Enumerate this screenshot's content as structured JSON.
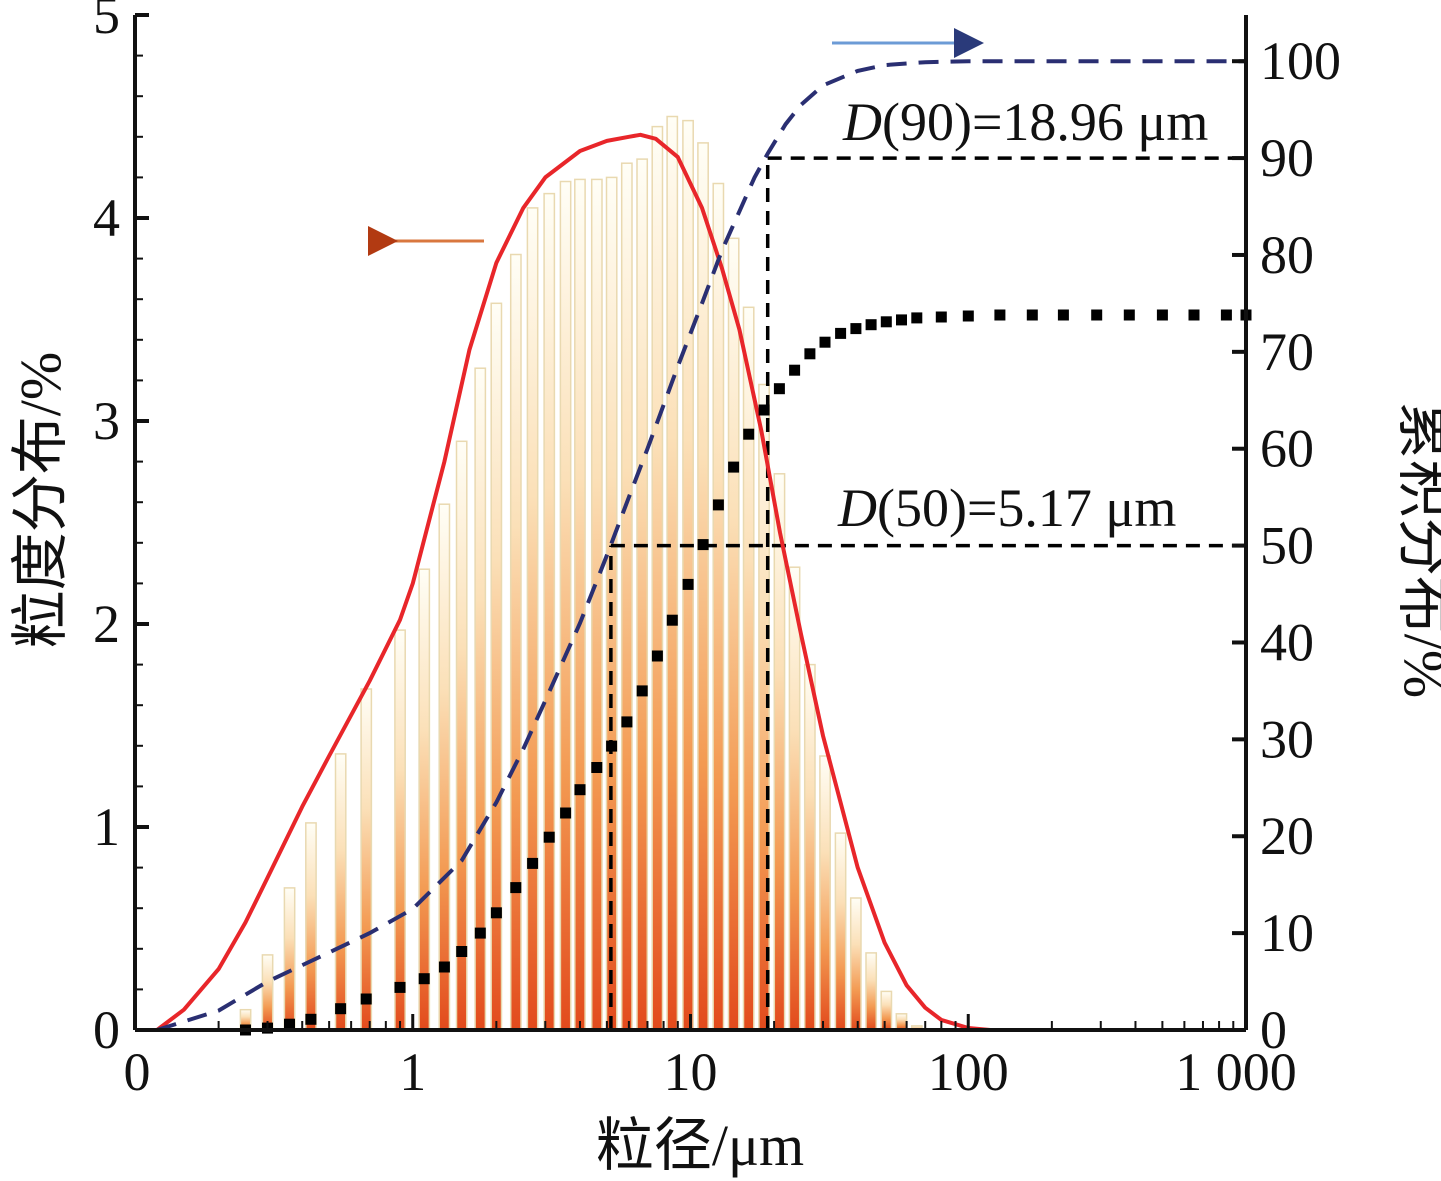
{
  "chart_data": {
    "type": "bar",
    "xscale": "log",
    "xlim": [
      0.1,
      1000
    ],
    "xlabel": "粒径/μm",
    "ylabel_left": "粒度分布/%",
    "ylabel_right": "累积分布/%",
    "ylim_left": [
      0,
      5
    ],
    "ylim_right": [
      0,
      105
    ],
    "xticks": [
      {
        "value": 0.1,
        "label": "0"
      },
      {
        "value": 1,
        "label": "1"
      },
      {
        "value": 10,
        "label": "10"
      },
      {
        "value": 100,
        "label": "100"
      },
      {
        "value": 1000,
        "label": "1 000"
      }
    ],
    "yticks_left": [
      "0",
      "1",
      "2",
      "3",
      "4",
      "5"
    ],
    "yticks_right": [
      "0",
      "10",
      "20",
      "30",
      "40",
      "50",
      "60",
      "70",
      "80",
      "90",
      "100"
    ],
    "bars": {
      "x": [
        0.25,
        0.3,
        0.36,
        0.43,
        0.55,
        0.68,
        0.9,
        1.1,
        1.3,
        1.5,
        1.75,
        2.0,
        2.35,
        2.7,
        3.1,
        3.55,
        4.0,
        4.6,
        5.2,
        5.9,
        6.7,
        7.6,
        8.6,
        9.8,
        11.1,
        12.6,
        14.3,
        16.2,
        18.4,
        20.9,
        23.7,
        26.9,
        30.5,
        34.7,
        39.4,
        44.7,
        50.7,
        57.5,
        65.3
      ],
      "values": [
        0.1,
        0.37,
        0.7,
        1.02,
        1.36,
        1.68,
        1.97,
        2.27,
        2.59,
        2.9,
        3.26,
        3.58,
        3.82,
        4.05,
        4.12,
        4.18,
        4.19,
        4.19,
        4.2,
        4.27,
        4.29,
        4.45,
        4.5,
        4.48,
        4.37,
        4.17,
        3.9,
        3.56,
        3.18,
        2.74,
        2.28,
        1.8,
        1.35,
        0.97,
        0.65,
        0.38,
        0.19,
        0.08,
        0.02
      ]
    },
    "density_curve": {
      "x": [
        0.12,
        0.15,
        0.2,
        0.25,
        0.3,
        0.4,
        0.5,
        0.7,
        0.9,
        1.0,
        1.3,
        1.6,
        2.0,
        2.5,
        3.0,
        4.0,
        5.0,
        6.0,
        6.6,
        7.5,
        9.0,
        11.0,
        13.0,
        15.0,
        18.0,
        21.0,
        25.0,
        30.0,
        40.0,
        50.0,
        60.0,
        70.0,
        80.0,
        100.0,
        120.0
      ],
      "values": [
        0.0,
        0.1,
        0.3,
        0.53,
        0.75,
        1.1,
        1.35,
        1.72,
        2.02,
        2.2,
        2.8,
        3.35,
        3.78,
        4.05,
        4.2,
        4.33,
        4.38,
        4.4,
        4.41,
        4.39,
        4.3,
        4.05,
        3.75,
        3.45,
        2.95,
        2.45,
        1.95,
        1.45,
        0.8,
        0.43,
        0.22,
        0.11,
        0.05,
        0.01,
        0.0
      ]
    },
    "cumulative_points": {
      "x": [
        0.25,
        0.3,
        0.36,
        0.43,
        0.55,
        0.68,
        0.9,
        1.1,
        1.3,
        1.5,
        1.75,
        2.0,
        2.35,
        2.7,
        3.1,
        3.55,
        4.0,
        4.6,
        5.2,
        5.9,
        6.7,
        7.6,
        8.6,
        9.8,
        11.1,
        12.6,
        14.3,
        16.2,
        18.4,
        20.9,
        23.7,
        26.9,
        30.5,
        34.7,
        39.4,
        44.7,
        50.7,
        57.5,
        65.3,
        80,
        100,
        130,
        170,
        220,
        290,
        380,
        500,
        650,
        850,
        1000
      ],
      "values": [
        0.0,
        0.2,
        0.6,
        1.1,
        2.2,
        3.2,
        4.4,
        5.3,
        6.5,
        8.1,
        10.0,
        12.1,
        14.7,
        17.2,
        19.9,
        22.4,
        24.8,
        27.1,
        29.3,
        31.8,
        35.0,
        38.6,
        42.3,
        46.0,
        50.1,
        54.2,
        58.1,
        61.5,
        64.0,
        66.2,
        68.1,
        69.8,
        71.0,
        71.9,
        72.4,
        72.8,
        73.1,
        73.3,
        73.5,
        73.6,
        73.7,
        73.8,
        73.8,
        73.8,
        73.8,
        73.8,
        73.8,
        73.8,
        73.8,
        73.8
      ]
    },
    "cumulative_curve": {
      "x": [
        0.12,
        0.2,
        0.3,
        0.5,
        0.7,
        1.0,
        1.5,
        2.0,
        2.5,
        3.0,
        4.0,
        5.0,
        6.0,
        7.0,
        9.0,
        11.0,
        13.0,
        15.0,
        17.0,
        19.0,
        22.0,
        25.0,
        30.0,
        40.0,
        50.0,
        70.0,
        100.0,
        200.0,
        500.0,
        1000.0
      ],
      "values": [
        0.0,
        2.0,
        5.0,
        8.0,
        10.0,
        12.5,
        17.5,
        23.5,
        29.0,
        34.0,
        42.0,
        49.0,
        55.0,
        60.0,
        68.5,
        75.0,
        80.5,
        84.5,
        88.0,
        90.5,
        93.5,
        95.5,
        97.5,
        99.0,
        99.6,
        99.9,
        100.0,
        100.0,
        100.0,
        100.0
      ]
    },
    "d50": {
      "label_prefix": "D",
      "label_rest": "(50)=5.17 μm",
      "x": 5.17,
      "y": 50
    },
    "d90": {
      "label_prefix": "D",
      "label_rest": "(90)=18.96 μm",
      "x": 18.96,
      "y": 90
    },
    "arrows": {
      "left_axis_color": "#d9773f",
      "right_axis_color": "#6c9bd6"
    },
    "colors": {
      "bar_top": "#fffdf2",
      "bar_bottom": "#e5531f",
      "density_curve": "#e8262a",
      "cumulative_curve": "#2a2f72",
      "cumulative_points": "#000000",
      "guide_lines": "#000000"
    }
  }
}
